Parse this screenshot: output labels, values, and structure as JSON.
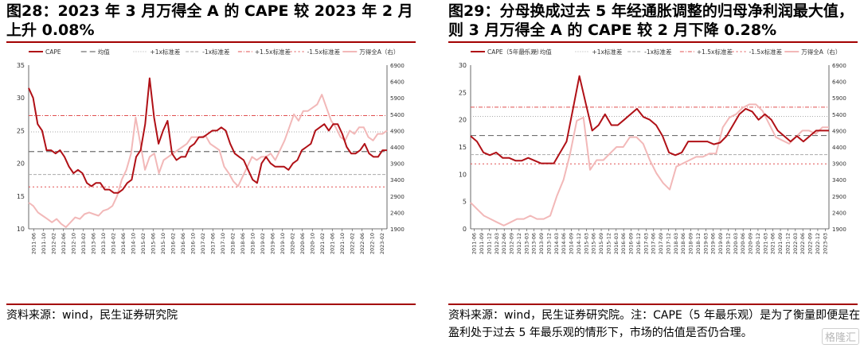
{
  "panels": [
    {
      "title": "图28：2023 年 3 月万得全 A 的 CAPE 较 2023 年 2 月上升 0.08%",
      "source": "资料来源：wind，民生证券研究院",
      "legend": [
        "CAPE",
        "均值",
        "+1x标准差",
        "-1x标准差",
        "+1.5x标准差",
        "-1.5x标准差",
        "万得全A（右）"
      ]
    },
    {
      "title": "图29：分母换成过去 5 年经通胀调整的归母净利润最大值，则 3 月万得全 A 的 CAPE 较 2 月下降 0.28%",
      "source": "资料来源：wind，民生证券研究院。注：CAPE（5 年最乐观）是为了衡量即便是在盈利处于过去 5 年最乐观的情形下，市场的估值是否仍合理。",
      "legend": [
        "CAPE（5年最乐观）",
        "均值",
        "+1x标准差",
        "-1x标准差",
        "+1.5x标准差",
        "-1.5x标准差",
        "万得全A（右）"
      ]
    }
  ],
  "watermark": "格隆汇",
  "colors": {
    "cape": "#b01016",
    "index": "#f2b8b8",
    "mean": "#707070",
    "band1": "#aaaaaa",
    "band15": "#e05050",
    "accent": "#a30000"
  },
  "chart_data": [
    {
      "type": "line",
      "title": "",
      "x_ticks": [
        "2011-06",
        "2011-10",
        "2012-02",
        "2012-06",
        "2012-10",
        "2013-02",
        "2013-06",
        "2013-10",
        "2014-02",
        "2014-06",
        "2014-10",
        "2015-02",
        "2015-06",
        "2015-10",
        "2016-02",
        "2016-06",
        "2016-10",
        "2017-02",
        "2017-06",
        "2017-10",
        "2018-02",
        "2018-06",
        "2018-10",
        "2019-02",
        "2019-06",
        "2019-10",
        "2020-02",
        "2020-06",
        "2020-10",
        "2021-02",
        "2021-06",
        "2021-10",
        "2022-02",
        "2022-06",
        "2022-10",
        "2023-02"
      ],
      "ylim_left": [
        10,
        35
      ],
      "yticks_left": [
        10,
        15,
        20,
        25,
        30,
        35
      ],
      "ylim_right": [
        1900,
        6900
      ],
      "yticks_right": [
        1900,
        2400,
        2900,
        3400,
        3900,
        4400,
        4900,
        5400,
        5900,
        6400,
        6900
      ],
      "series": [
        {
          "name": "CAPE",
          "axis": "left",
          "values": [
            31.5,
            30,
            26,
            25,
            22,
            22,
            21.5,
            22,
            21,
            19.5,
            18.5,
            19,
            18.5,
            17,
            16.5,
            17,
            17,
            16,
            16,
            15.5,
            15.5,
            16,
            17,
            17.5,
            21,
            22,
            26,
            33,
            27,
            23,
            25,
            26.5,
            21.5,
            20.5,
            21,
            21,
            22.5,
            23,
            24,
            24,
            24.5,
            25,
            25,
            25.5,
            25,
            23,
            21.5,
            21,
            20.5,
            19,
            17.5,
            17,
            20,
            21,
            20,
            19.5,
            19.5,
            19.5,
            19,
            20,
            20.5,
            22,
            22.5,
            23,
            25,
            25.5,
            26,
            25,
            26,
            26,
            24.5,
            22.5,
            21.5,
            21.5,
            22,
            23,
            21.5,
            21,
            21,
            22,
            22
          ]
        },
        {
          "name": "万得全A（右）",
          "axis": "right",
          "values": [
            2700,
            2600,
            2400,
            2300,
            2200,
            2100,
            2200,
            2050,
            1950,
            2100,
            2250,
            2200,
            2350,
            2400,
            2350,
            2300,
            2450,
            2500,
            2600,
            2900,
            3400,
            3700,
            4200,
            5300,
            4500,
            3700,
            4100,
            4200,
            3600,
            4000,
            4100,
            4200,
            4300,
            4400,
            4500,
            4700,
            4700,
            4700,
            4750,
            4500,
            4400,
            4300,
            3800,
            3600,
            3350,
            3200,
            3500,
            3800,
            4100,
            4000,
            4100,
            4100,
            4200,
            4000,
            4300,
            4600,
            5000,
            5400,
            5200,
            5500,
            5500,
            5600,
            5700,
            6000,
            5600,
            5200,
            5000,
            4700,
            4600,
            4900,
            4800,
            5000,
            5000,
            4700,
            4600,
            4800,
            4800,
            4900
          ]
        }
      ],
      "hlines": [
        {
          "name": "均值",
          "value": 21.8
        },
        {
          "name": "+1x标准差",
          "value": 24.8
        },
        {
          "name": "-1x标准差",
          "value": 18.3
        },
        {
          "name": "+1.5x标准差",
          "value": 27.3
        },
        {
          "name": "-1.5x标准差",
          "value": 16.4
        }
      ],
      "grid": false,
      "legend_position": "top"
    },
    {
      "type": "line",
      "title": "",
      "x_ticks": [
        "2011-06",
        "2011-09",
        "2011-12",
        "2012-03",
        "2012-06",
        "2012-09",
        "2012-12",
        "2013-03",
        "2013-06",
        "2013-09",
        "2013-12",
        "2014-03",
        "2014-06",
        "2014-09",
        "2014-12",
        "2015-03",
        "2015-06",
        "2015-09",
        "2015-12",
        "2016-03",
        "2016-06",
        "2016-09",
        "2016-12",
        "2017-03",
        "2017-06",
        "2017-09",
        "2017-12",
        "2018-03",
        "2018-06",
        "2018-09",
        "2018-12",
        "2019-03",
        "2019-06",
        "2019-09",
        "2019-12",
        "2020-03",
        "2020-06",
        "2020-09",
        "2020-12",
        "2021-03",
        "2021-06",
        "2021-09",
        "2021-12",
        "2022-03",
        "2022-06",
        "2022-09",
        "2022-12",
        "2023-03"
      ],
      "ylim_left": [
        0,
        30
      ],
      "yticks_left": [
        0,
        5,
        10,
        15,
        20,
        25,
        30
      ],
      "ylim_right": [
        1900,
        6900
      ],
      "yticks_right": [
        1900,
        2400,
        2900,
        3400,
        3900,
        4400,
        4900,
        5400,
        5900,
        6400,
        6900
      ],
      "series": [
        {
          "name": "CAPE（5年最乐观）",
          "axis": "left",
          "values": [
            17,
            16,
            14,
            13.5,
            14,
            13,
            13,
            12.5,
            12.5,
            13,
            12.5,
            12,
            12,
            12,
            14,
            16,
            22,
            28,
            23,
            18,
            19,
            21,
            19,
            19,
            20,
            21,
            22,
            20.5,
            20,
            19,
            17,
            14,
            13.5,
            14,
            16,
            16,
            16,
            16,
            15.5,
            15.8,
            17,
            19,
            21,
            22,
            21.5,
            20,
            21,
            20,
            18,
            17,
            16,
            17,
            16,
            17,
            18,
            18,
            18
          ]
        },
        {
          "name": "万得全A（右）",
          "axis": "right",
          "values": [
            2700,
            2500,
            2300,
            2200,
            2100,
            2000,
            2100,
            2200,
            2200,
            2300,
            2200,
            2200,
            2300,
            2900,
            3400,
            4200,
            5200,
            5300,
            3700,
            4000,
            4000,
            4200,
            4400,
            4400,
            4700,
            4700,
            4500,
            4000,
            3600,
            3300,
            3100,
            3800,
            3900,
            4000,
            4100,
            4100,
            4200,
            4200,
            5000,
            5300,
            5400,
            5600,
            5700,
            5700,
            5500,
            5100,
            4700,
            4600,
            4500,
            4700,
            4900,
            4900,
            4800,
            5000,
            5000
          ]
        }
      ],
      "hlines": [
        {
          "name": "均值",
          "value": 17.1
        },
        {
          "name": "+1x标准差",
          "value": 20.6
        },
        {
          "name": "-1x标准差",
          "value": 13.6
        },
        {
          "name": "+1.5x标准差",
          "value": 22.3
        },
        {
          "name": "-1.5x标准差",
          "value": 11.9
        }
      ],
      "grid": false,
      "legend_position": "top"
    }
  ]
}
